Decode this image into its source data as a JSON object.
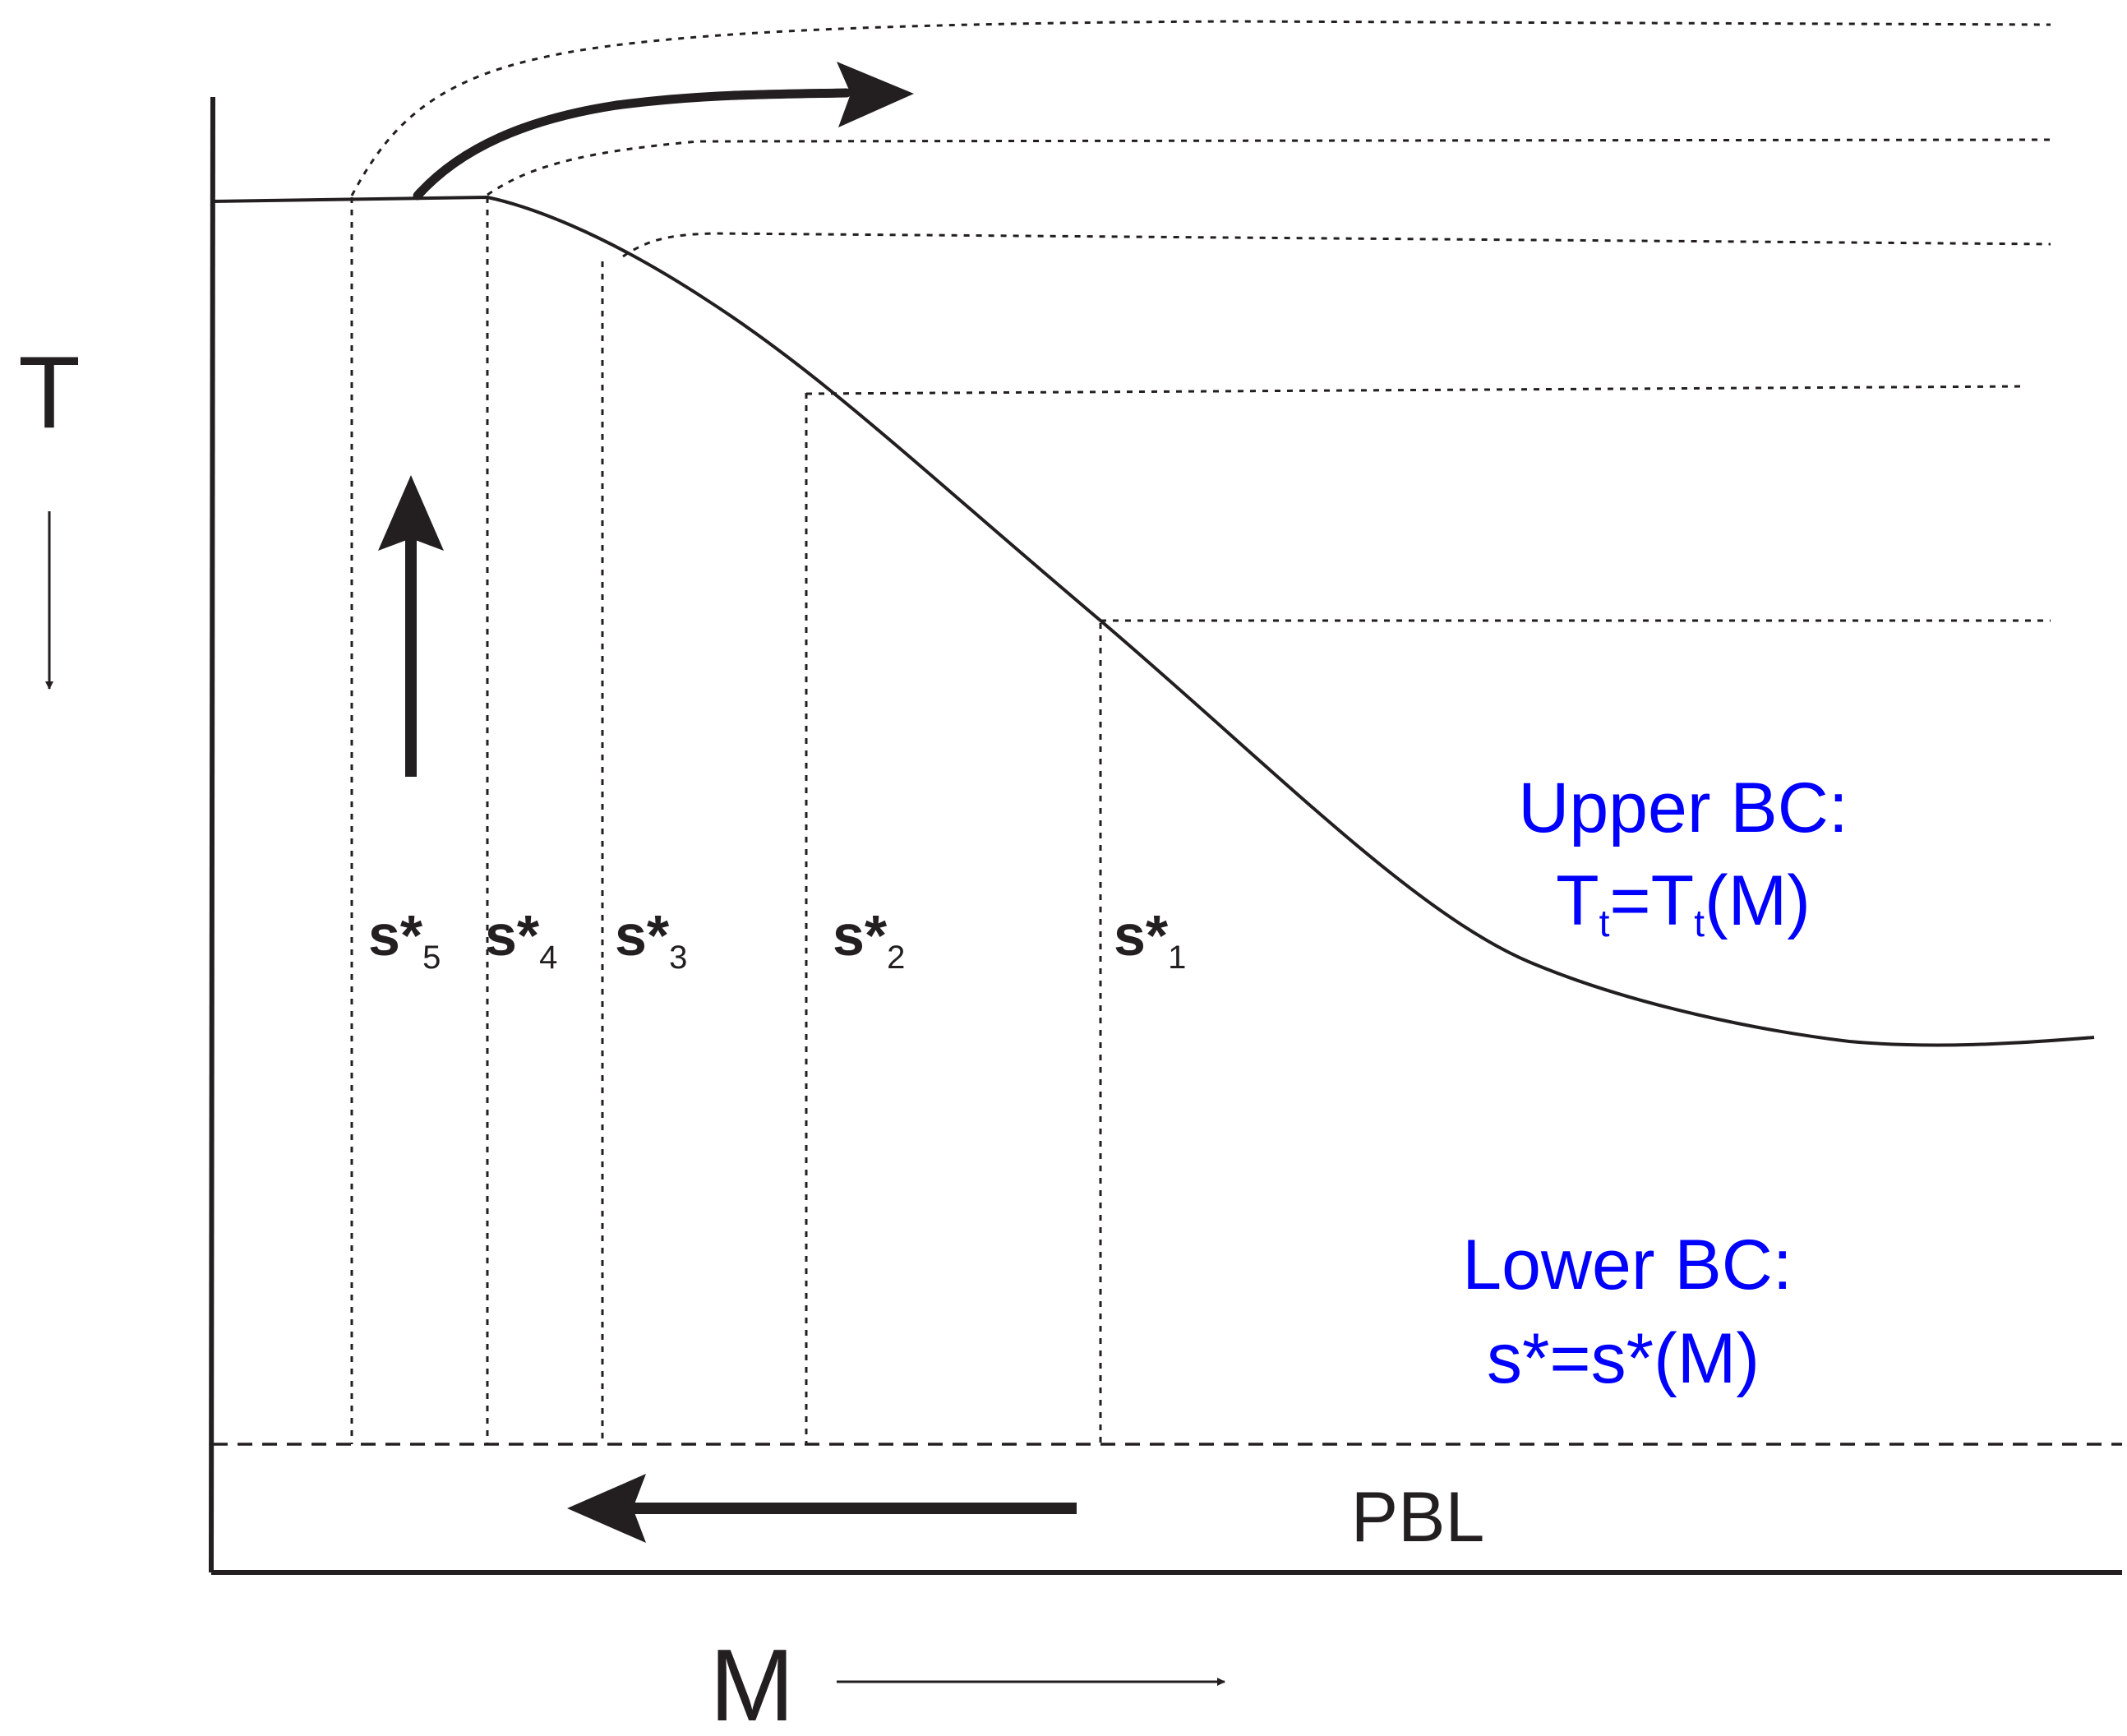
{
  "axes": {
    "vertical_label": "T",
    "horizontal_label": "M"
  },
  "station_labels": [
    {
      "base": "s*",
      "subscript": "5"
    },
    {
      "base": "s*",
      "subscript": "4"
    },
    {
      "base": "s*",
      "subscript": "3"
    },
    {
      "base": "s*",
      "subscript": "2"
    },
    {
      "base": "s*",
      "subscript": "1"
    }
  ],
  "upper_bc": {
    "title": "Upper BC:",
    "eq_T1": "T",
    "eq_sub1": "t",
    "eq_mid": "=T",
    "eq_sub2": "t",
    "eq_tail": "(M)"
  },
  "lower_bc": {
    "title": "Lower BC:",
    "equation": "s*=s*(M)"
  },
  "pbl_label": "PBL",
  "colors": {
    "line": "#231f20",
    "annotation": "#0000ff",
    "background": "#ffffff"
  }
}
